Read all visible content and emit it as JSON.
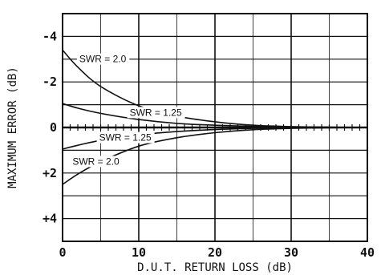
{
  "chart_data": {
    "type": "line",
    "title": "",
    "xlabel": "D.U.T. RETURN LOSS (dB)",
    "ylabel": "MAXIMUM ERROR (dB)",
    "xlim": [
      0,
      40
    ],
    "ylim": [
      -5,
      5
    ],
    "y_inverted": true,
    "grid": true,
    "x_ticks": [
      0,
      10,
      20,
      30,
      40
    ],
    "x_tick_labels": [
      "0",
      "10",
      "20",
      "30",
      "40"
    ],
    "y_ticks": [
      -4,
      -2,
      0,
      2,
      4
    ],
    "y_tick_labels": [
      "-4",
      "-2",
      "0",
      "+2",
      "+4"
    ],
    "series": [
      {
        "name": "SWR = 2.0",
        "x": [
          0,
          2,
          5,
          10,
          15,
          20,
          25,
          30,
          35,
          40
        ],
        "y": [
          -3.4,
          -2.65,
          -1.8,
          -0.95,
          -0.5,
          -0.25,
          -0.1,
          -0.04,
          -0.01,
          0
        ]
      },
      {
        "name": "SWR = 1.25",
        "x": [
          0,
          2,
          5,
          10,
          15,
          20,
          25,
          30,
          35,
          40
        ],
        "y": [
          -1.05,
          -0.85,
          -0.62,
          -0.35,
          -0.18,
          -0.1,
          -0.05,
          -0.02,
          -0.01,
          0
        ]
      },
      {
        "name": "SWR = 1.25",
        "x": [
          0,
          2,
          5,
          10,
          15,
          20,
          25,
          30,
          35,
          40
        ],
        "y": [
          0.95,
          0.78,
          0.57,
          0.33,
          0.18,
          0.09,
          0.04,
          0.02,
          0.01,
          0
        ]
      },
      {
        "name": "SWR = 2.0",
        "x": [
          0,
          2,
          5,
          10,
          15,
          20,
          25,
          30,
          35,
          40
        ],
        "y": [
          2.5,
          2.05,
          1.5,
          0.82,
          0.45,
          0.23,
          0.1,
          0.04,
          0.01,
          0
        ]
      }
    ]
  }
}
